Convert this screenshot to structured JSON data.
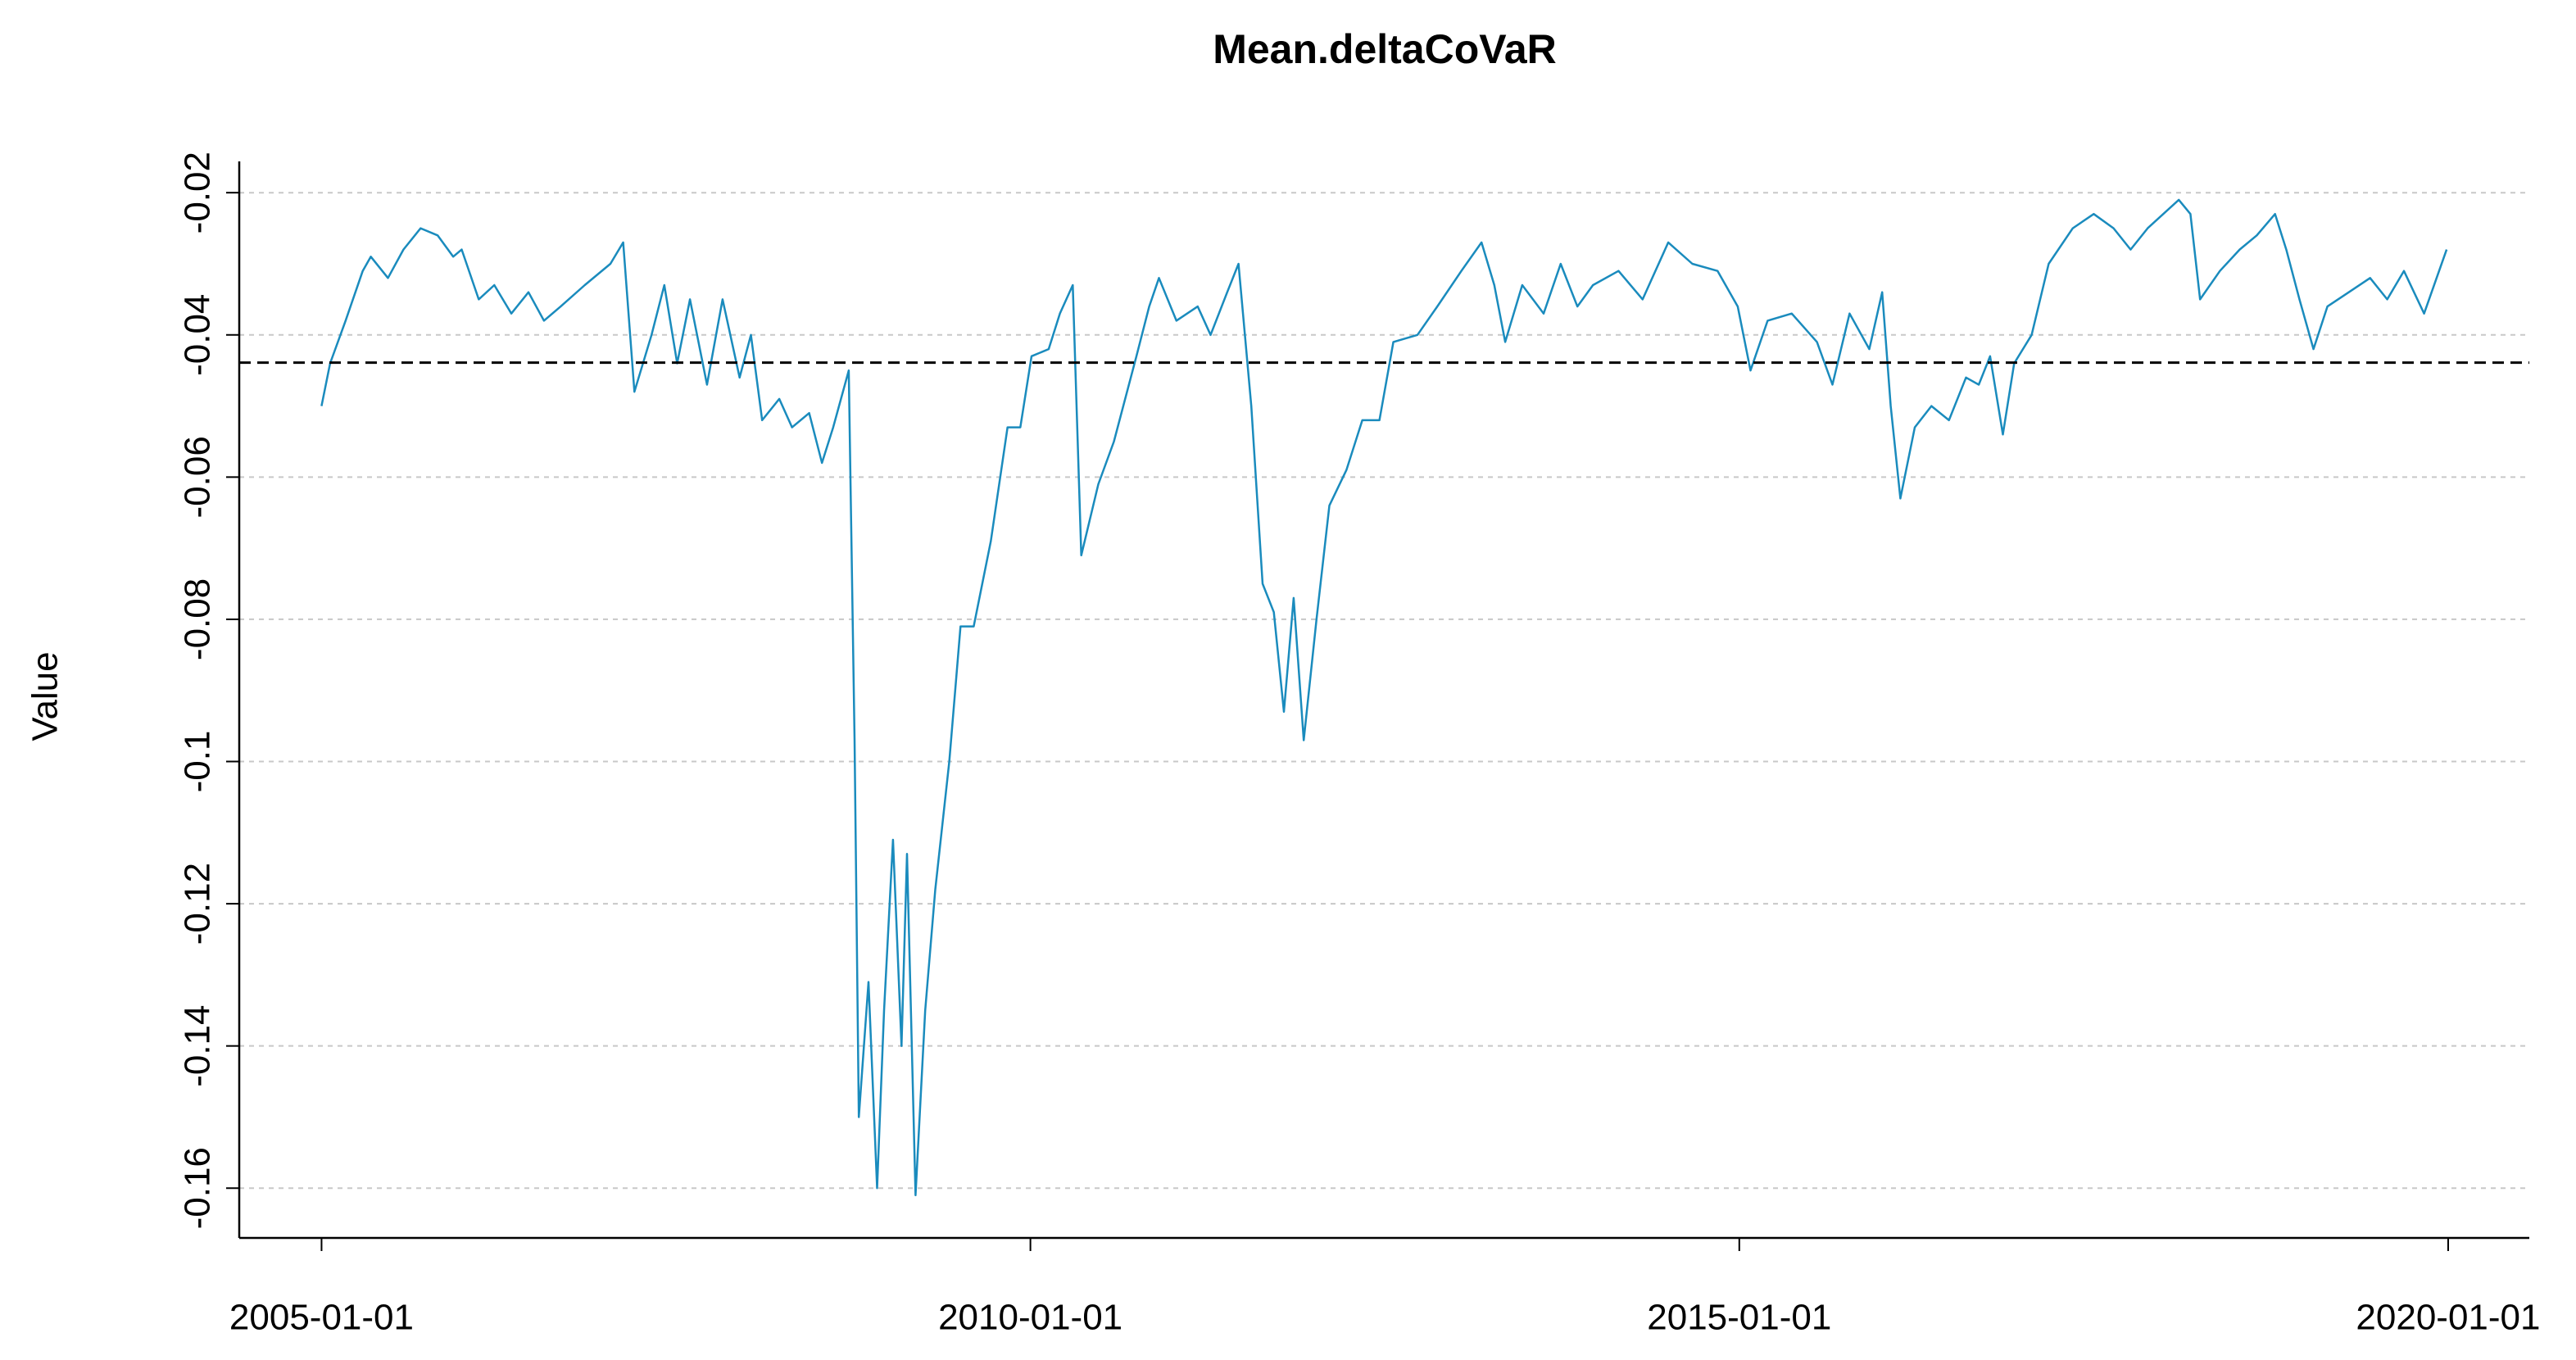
{
  "chart_data": {
    "type": "line",
    "title": "Mean.deltaCoVaR",
    "y_label": "Value",
    "color": "#1a8bbd",
    "hline": -0.0439,
    "hline_color": "#000000",
    "grid": true,
    "xlim": [
      "2004-06-03",
      "2020-07-28"
    ],
    "xticks": [
      "2005-01-01",
      "2010-01-01",
      "2015-01-01",
      "2020-01-01"
    ],
    "ylim": [
      -0.167,
      -0.0156
    ],
    "yticks": [
      -0.02,
      -0.04,
      -0.06,
      -0.08,
      -0.1,
      -0.12,
      -0.14,
      -0.16
    ],
    "x": [
      "2005-01-01",
      "2005-01-23",
      "2005-03-04",
      "2005-04-17",
      "2005-05-08",
      "2005-06-21",
      "2005-07-31",
      "2005-09-13",
      "2005-10-27",
      "2005-12-06",
      "2005-12-28",
      "2006-02-10",
      "2006-03-22",
      "2006-05-05",
      "2006-06-18",
      "2006-07-28",
      "2006-09-09",
      "2006-11-10",
      "2007-01-15",
      "2007-02-17",
      "2007-03-18",
      "2007-05-01",
      "2007-06-03",
      "2007-07-06",
      "2007-08-08",
      "2007-09-21",
      "2007-10-31",
      "2007-12-14",
      "2008-01-12",
      "2008-02-10",
      "2008-03-25",
      "2008-04-27",
      "2008-06-10",
      "2008-07-13",
      "2008-08-11",
      "2008-09-20",
      "2008-10-05",
      "2008-10-16",
      "2008-11-10",
      "2008-12-02",
      "2008-12-20",
      "2009-01-12",
      "2009-02-03",
      "2009-02-17",
      "2009-03-11",
      "2009-04-05",
      "2009-05-01",
      "2009-06-06",
      "2009-07-05",
      "2009-08-08",
      "2009-09-21",
      "2009-11-03",
      "2009-12-06",
      "2010-01-04",
      "2010-02-17",
      "2010-03-18",
      "2010-04-20",
      "2010-05-12",
      "2010-06-25",
      "2010-08-04",
      "2010-10-01",
      "2010-11-03",
      "2010-11-28",
      "2011-01-12",
      "2011-03-08",
      "2011-04-10",
      "2011-05-23",
      "2011-06-21",
      "2011-07-24",
      "2011-08-22",
      "2011-09-20",
      "2011-10-16",
      "2011-11-10",
      "2011-12-06",
      "2012-01-08",
      "2012-02-10",
      "2012-03-25",
      "2012-05-05",
      "2012-06-18",
      "2012-07-24",
      "2012-09-24",
      "2012-11-14",
      "2013-01-15",
      "2013-03-08",
      "2013-04-10",
      "2013-05-08",
      "2013-06-21",
      "2013-08-15",
      "2013-09-28",
      "2013-11-10",
      "2013-12-20",
      "2014-02-24",
      "2014-04-27",
      "2014-07-02",
      "2014-09-02",
      "2014-11-06",
      "2014-12-28",
      "2015-01-30",
      "2015-03-15",
      "2015-05-16",
      "2015-07-20",
      "2015-08-29",
      "2015-10-12",
      "2015-12-02",
      "2016-01-04",
      "2016-01-26",
      "2016-02-20",
      "2016-03-28",
      "2016-05-10",
      "2016-06-24",
      "2016-08-07",
      "2016-09-09",
      "2016-10-08",
      "2016-11-10",
      "2016-12-09",
      "2017-01-23",
      "2017-03-08",
      "2017-05-09",
      "2017-07-02",
      "2017-08-22",
      "2017-10-05",
      "2017-11-18",
      "2018-02-06",
      "2018-03-08",
      "2018-04-02",
      "2018-05-23",
      "2018-07-13",
      "2018-08-26",
      "2018-10-12",
      "2018-11-10",
      "2018-12-14",
      "2019-01-19",
      "2019-02-24",
      "2019-04-20",
      "2019-06-14",
      "2019-07-28",
      "2019-09-09",
      "2019-10-31",
      "2019-12-28"
    ],
    "values": [
      -0.05,
      -0.044,
      -0.038,
      -0.031,
      -0.029,
      -0.032,
      -0.028,
      -0.025,
      -0.026,
      -0.029,
      -0.028,
      -0.035,
      -0.033,
      -0.037,
      -0.034,
      -0.038,
      -0.036,
      -0.033,
      -0.03,
      -0.027,
      -0.048,
      -0.04,
      -0.033,
      -0.044,
      -0.035,
      -0.047,
      -0.035,
      -0.046,
      -0.04,
      -0.052,
      -0.049,
      -0.053,
      -0.051,
      -0.058,
      -0.053,
      -0.045,
      -0.097,
      -0.15,
      -0.131,
      -0.16,
      -0.135,
      -0.111,
      -0.14,
      -0.113,
      -0.161,
      -0.135,
      -0.118,
      -0.1,
      -0.081,
      -0.081,
      -0.069,
      -0.053,
      -0.053,
      -0.043,
      -0.042,
      -0.037,
      -0.033,
      -0.071,
      -0.061,
      -0.055,
      -0.043,
      -0.036,
      -0.032,
      -0.038,
      -0.036,
      -0.04,
      -0.034,
      -0.03,
      -0.05,
      -0.075,
      -0.079,
      -0.093,
      -0.077,
      -0.097,
      -0.08,
      -0.064,
      -0.059,
      -0.052,
      -0.052,
      -0.041,
      -0.04,
      -0.036,
      -0.031,
      -0.027,
      -0.033,
      -0.041,
      -0.033,
      -0.037,
      -0.03,
      -0.036,
      -0.033,
      -0.031,
      -0.035,
      -0.027,
      -0.03,
      -0.031,
      -0.036,
      -0.045,
      -0.038,
      -0.037,
      -0.041,
      -0.047,
      -0.037,
      -0.042,
      -0.034,
      -0.05,
      -0.063,
      -0.053,
      -0.05,
      -0.052,
      -0.046,
      -0.047,
      -0.043,
      -0.054,
      -0.044,
      -0.04,
      -0.03,
      -0.025,
      -0.023,
      -0.025,
      -0.028,
      -0.025,
      -0.021,
      -0.023,
      -0.035,
      -0.031,
      -0.028,
      -0.026,
      -0.023,
      -0.028,
      -0.035,
      -0.042,
      -0.036,
      -0.034,
      -0.032,
      -0.035,
      -0.031,
      -0.037,
      -0.028
    ]
  }
}
